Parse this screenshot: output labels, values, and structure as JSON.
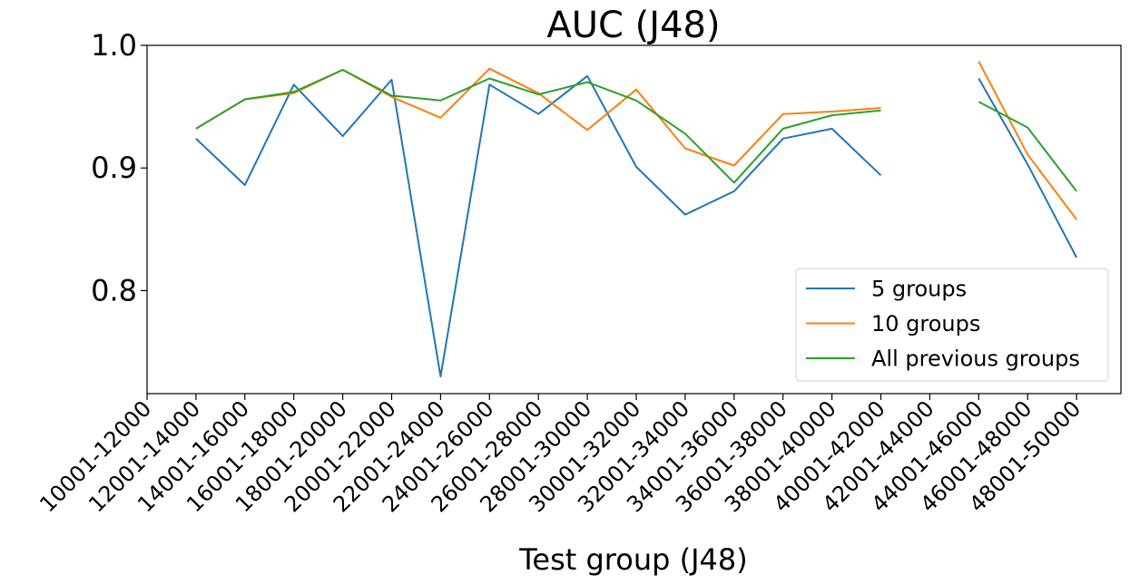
{
  "chart_data": {
    "type": "line",
    "title": "AUC (J48)",
    "xlabel": "Test group (J48)",
    "ylabel": "",
    "ylim": [
      0.716,
      1.0
    ],
    "yticks": [
      0.8,
      0.9,
      1.0
    ],
    "ytick_labels": [
      "0.8",
      "0.9",
      "1.0"
    ],
    "categories": [
      "10001-12000",
      "12001-14000",
      "14001-16000",
      "16001-18000",
      "18001-20000",
      "20001-22000",
      "22001-24000",
      "24001-26000",
      "26001-28000",
      "28001-30000",
      "30001-32000",
      "32001-34000",
      "34001-36000",
      "36001-38000",
      "38001-40000",
      "40001-42000",
      "42001-44000",
      "44001-46000",
      "46001-48000",
      "48001-50000"
    ],
    "grid": false,
    "legend_position": "lower right",
    "series": [
      {
        "name": "5 groups",
        "color": "#1f77b4",
        "values": [
          null,
          0.924,
          0.886,
          0.968,
          0.926,
          0.972,
          0.73,
          0.968,
          0.944,
          0.975,
          0.901,
          0.862,
          0.881,
          0.924,
          0.932,
          0.894,
          null,
          0.973,
          0.903,
          0.827
        ]
      },
      {
        "name": "10 groups",
        "color": "#ff7f0e",
        "values": [
          null,
          0.932,
          0.956,
          0.961,
          0.98,
          0.958,
          0.941,
          0.981,
          0.961,
          0.931,
          0.964,
          0.916,
          0.902,
          0.944,
          0.946,
          0.949,
          null,
          0.987,
          0.911,
          0.858
        ]
      },
      {
        "name": "All previous groups",
        "color": "#2ca02c",
        "values": [
          null,
          0.932,
          0.956,
          0.962,
          0.98,
          0.959,
          0.955,
          0.973,
          0.96,
          0.97,
          0.955,
          0.928,
          0.888,
          0.932,
          0.943,
          0.947,
          null,
          0.954,
          0.933,
          0.881
        ]
      }
    ]
  }
}
